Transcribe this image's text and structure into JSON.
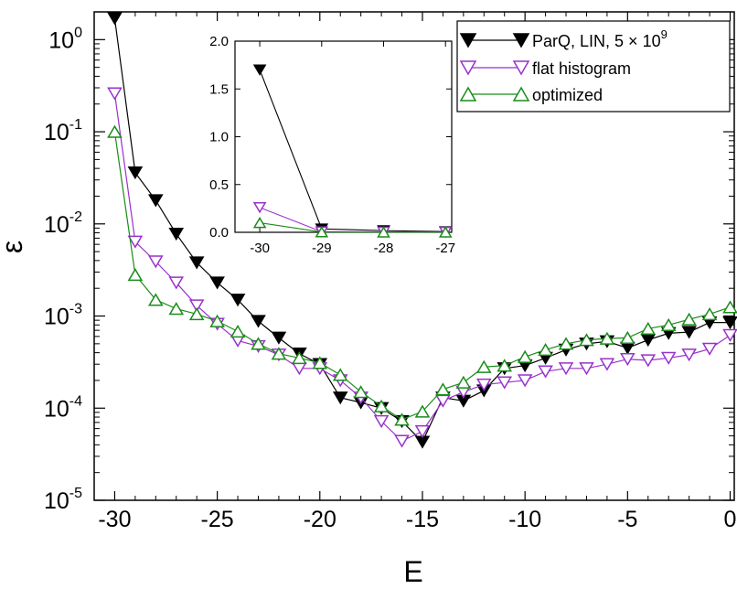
{
  "chart_data": {
    "type": "line",
    "xlabel": "E",
    "ylabel": "ε",
    "yscale": "log",
    "xlim": [
      -31,
      0.2
    ],
    "ylim": [
      1e-05,
      2.0
    ],
    "x_ticks": [
      -30,
      -25,
      -20,
      -15,
      -10,
      -5,
      0
    ],
    "x_tick_labels": [
      "-30",
      "-25",
      "-20",
      "-15",
      "-10",
      "-5",
      "0"
    ],
    "y_ticks": [
      {
        "value": 1,
        "base": "10",
        "exp": "0"
      },
      {
        "value": 0.1,
        "base": "10",
        "exp": "-1"
      },
      {
        "value": 0.01,
        "base": "10",
        "exp": "-2"
      },
      {
        "value": 0.001,
        "base": "10",
        "exp": "-3"
      },
      {
        "value": 0.0001,
        "base": "10",
        "exp": "-4"
      },
      {
        "value": 1e-05,
        "base": "10",
        "exp": "-5"
      }
    ],
    "legend_position": "top-right",
    "series": [
      {
        "name": "ParQ, LIN, 5×10^9",
        "label_main": "ParQ, LIN, 5",
        "label_times": "×",
        "label_base": "10",
        "label_exp": "9",
        "color": "#000000",
        "marker": "triangle-down-filled",
        "x": [
          -30,
          -29,
          -28,
          -27,
          -26,
          -25,
          -24,
          -23,
          -22,
          -21,
          -20,
          -19,
          -18,
          -17,
          -16,
          -15,
          -14,
          -13,
          -12,
          -11,
          -10,
          -9,
          -8,
          -7,
          -6,
          -5,
          -4,
          -3,
          -2,
          -1,
          0
        ],
        "y": [
          1.7,
          0.036,
          0.018,
          0.0078,
          0.0038,
          0.0023,
          0.0015,
          0.00088,
          0.00058,
          0.00039,
          0.0003,
          0.00013,
          0.000115,
          0.0001,
          7.2e-05,
          4.3e-05,
          0.00013,
          0.00012,
          0.000155,
          0.00027,
          0.00029,
          0.00035,
          0.00043,
          0.0005,
          0.00053,
          0.00045,
          0.00055,
          0.00065,
          0.00067,
          0.00085,
          0.00085
        ]
      },
      {
        "name": "flat histogram",
        "color": "#9932cc",
        "marker": "triangle-down-open",
        "x": [
          -30,
          -29,
          -28,
          -27,
          -26,
          -25,
          -24,
          -23,
          -22,
          -21,
          -20,
          -19,
          -18,
          -17,
          -16,
          -15,
          -14,
          -13,
          -12,
          -11,
          -10,
          -9,
          -8,
          -7,
          -6,
          -5,
          -4,
          -3,
          -2,
          -1,
          0
        ],
        "y": [
          0.26,
          0.0064,
          0.0039,
          0.0023,
          0.0013,
          0.00082,
          0.00054,
          0.00047,
          0.00038,
          0.00027,
          0.00027,
          0.0002,
          0.00013,
          7.2e-05,
          4.4e-05,
          5.6e-05,
          0.00012,
          0.00015,
          0.00018,
          0.00019,
          0.0002,
          0.00025,
          0.00027,
          0.00027,
          0.0003,
          0.00034,
          0.00033,
          0.00035,
          0.00038,
          0.00044,
          0.00062
        ]
      },
      {
        "name": "optimized",
        "color": "#1a8c1a",
        "marker": "triangle-up-open",
        "x": [
          -30,
          -29,
          -28,
          -27,
          -26,
          -25,
          -24,
          -23,
          -22,
          -21,
          -20,
          -19,
          -18,
          -17,
          -16,
          -15,
          -14,
          -13,
          -12,
          -11,
          -10,
          -9,
          -8,
          -7,
          -6,
          -5,
          -4,
          -3,
          -2,
          -1,
          0
        ],
        "y": [
          0.1,
          0.0028,
          0.0015,
          0.0012,
          0.00105,
          0.00088,
          0.00068,
          0.0005,
          0.00039,
          0.00035,
          0.00031,
          0.00023,
          0.00015,
          0.000105,
          7.5e-05,
          9.2e-05,
          0.00016,
          0.00019,
          0.00028,
          0.00029,
          0.00036,
          0.00043,
          0.0005,
          0.00055,
          0.00057,
          0.00058,
          0.00073,
          0.0008,
          0.00092,
          0.00105,
          0.00125
        ]
      }
    ],
    "inset": {
      "type": "line",
      "xlim": [
        -30.4,
        -26.9
      ],
      "ylim": [
        0,
        2.0
      ],
      "x_ticks": [
        -30,
        -29,
        -28,
        -27
      ],
      "x_tick_labels": [
        "-30",
        "-29",
        "-28",
        "-27"
      ],
      "y_ticks": [
        0,
        0.5,
        1.0,
        1.5,
        2.0
      ],
      "y_tick_labels": [
        "0.0",
        "0.5",
        "1.0",
        "1.5",
        "2.0"
      ],
      "series": [
        {
          "name": "ParQ, LIN, 5×10^9",
          "color": "#000000",
          "marker": "triangle-down-filled",
          "x": [
            -30,
            -29,
            -28,
            -27
          ],
          "y": [
            1.7,
            0.036,
            0.018,
            0.0078
          ]
        },
        {
          "name": "flat histogram",
          "color": "#9932cc",
          "marker": "triangle-down-open",
          "x": [
            -30,
            -29,
            -28,
            -27
          ],
          "y": [
            0.26,
            0.0064,
            0.0039,
            0.0023
          ]
        },
        {
          "name": "optimized",
          "color": "#1a8c1a",
          "marker": "triangle-up-open",
          "x": [
            -30,
            -29,
            -28,
            -27
          ],
          "y": [
            0.1,
            0.0028,
            0.0015,
            0.0012
          ]
        }
      ]
    }
  }
}
